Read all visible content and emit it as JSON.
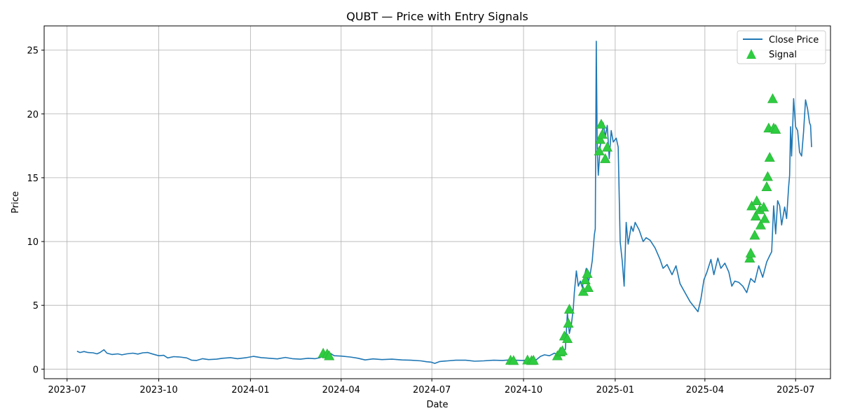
{
  "chart_data": {
    "type": "line",
    "title": "QUBT — Price with Entry Signals",
    "xlabel": "Date",
    "ylabel": "Price",
    "xlim": [
      "2023-06-08",
      "2025-08-05"
    ],
    "ylim": [
      -0.75,
      26.9
    ],
    "x_ticks": [
      {
        "date": "2023-07-01",
        "label": "2023-07"
      },
      {
        "date": "2023-10-01",
        "label": "2023-10"
      },
      {
        "date": "2024-01-01",
        "label": "2024-01"
      },
      {
        "date": "2024-04-01",
        "label": "2024-04"
      },
      {
        "date": "2024-07-01",
        "label": "2024-07"
      },
      {
        "date": "2024-10-01",
        "label": "2024-10"
      },
      {
        "date": "2025-01-01",
        "label": "2025-01"
      },
      {
        "date": "2025-04-01",
        "label": "2025-04"
      },
      {
        "date": "2025-07-01",
        "label": "2025-07"
      }
    ],
    "y_ticks": [
      0,
      5,
      10,
      15,
      20,
      25
    ],
    "grid": true,
    "legend_position": "top-right",
    "series": [
      {
        "name": "Close Price",
        "kind": "line",
        "color": "#1f77b4",
        "points": [
          [
            "2023-07-11",
            1.4
          ],
          [
            "2023-07-14",
            1.3
          ],
          [
            "2023-07-18",
            1.38
          ],
          [
            "2023-07-22",
            1.3
          ],
          [
            "2023-07-27",
            1.28
          ],
          [
            "2023-07-31",
            1.2
          ],
          [
            "2023-08-03",
            1.3
          ],
          [
            "2023-08-07",
            1.52
          ],
          [
            "2023-08-10",
            1.25
          ],
          [
            "2023-08-15",
            1.15
          ],
          [
            "2023-08-21",
            1.2
          ],
          [
            "2023-08-25",
            1.12
          ],
          [
            "2023-08-30",
            1.2
          ],
          [
            "2023-09-05",
            1.25
          ],
          [
            "2023-09-10",
            1.18
          ],
          [
            "2023-09-15",
            1.28
          ],
          [
            "2023-09-20",
            1.3
          ],
          [
            "2023-09-25",
            1.18
          ],
          [
            "2023-10-01",
            1.05
          ],
          [
            "2023-10-06",
            1.08
          ],
          [
            "2023-10-10",
            0.88
          ],
          [
            "2023-10-16",
            0.98
          ],
          [
            "2023-10-22",
            0.95
          ],
          [
            "2023-10-29",
            0.88
          ],
          [
            "2023-11-03",
            0.7
          ],
          [
            "2023-11-08",
            0.68
          ],
          [
            "2023-11-14",
            0.82
          ],
          [
            "2023-11-20",
            0.75
          ],
          [
            "2023-11-28",
            0.78
          ],
          [
            "2023-12-04",
            0.85
          ],
          [
            "2023-12-12",
            0.9
          ],
          [
            "2023-12-19",
            0.82
          ],
          [
            "2023-12-28",
            0.9
          ],
          [
            "2024-01-04",
            1.0
          ],
          [
            "2024-01-12",
            0.9
          ],
          [
            "2024-01-20",
            0.85
          ],
          [
            "2024-01-28",
            0.8
          ],
          [
            "2024-02-05",
            0.92
          ],
          [
            "2024-02-12",
            0.82
          ],
          [
            "2024-02-20",
            0.78
          ],
          [
            "2024-02-28",
            0.85
          ],
          [
            "2024-03-06",
            0.82
          ],
          [
            "2024-03-11",
            0.9
          ],
          [
            "2024-03-15",
            1.15
          ],
          [
            "2024-03-18",
            1.3
          ],
          [
            "2024-03-21",
            1.25
          ],
          [
            "2024-03-25",
            1.05
          ],
          [
            "2024-04-01",
            1.02
          ],
          [
            "2024-04-10",
            0.95
          ],
          [
            "2024-04-18",
            0.85
          ],
          [
            "2024-04-25",
            0.72
          ],
          [
            "2024-05-03",
            0.8
          ],
          [
            "2024-05-12",
            0.75
          ],
          [
            "2024-05-22",
            0.78
          ],
          [
            "2024-06-01",
            0.72
          ],
          [
            "2024-06-10",
            0.7
          ],
          [
            "2024-06-20",
            0.65
          ],
          [
            "2024-06-26",
            0.58
          ],
          [
            "2024-06-30",
            0.55
          ],
          [
            "2024-07-04",
            0.45
          ],
          [
            "2024-07-09",
            0.6
          ],
          [
            "2024-07-17",
            0.65
          ],
          [
            "2024-07-25",
            0.7
          ],
          [
            "2024-08-04",
            0.7
          ],
          [
            "2024-08-13",
            0.62
          ],
          [
            "2024-08-22",
            0.65
          ],
          [
            "2024-09-01",
            0.7
          ],
          [
            "2024-09-10",
            0.68
          ],
          [
            "2024-09-17",
            0.72
          ],
          [
            "2024-09-23",
            0.7
          ],
          [
            "2024-09-30",
            0.68
          ],
          [
            "2024-10-08",
            0.72
          ],
          [
            "2024-10-14",
            0.75
          ],
          [
            "2024-10-18",
            1.0
          ],
          [
            "2024-10-22",
            1.12
          ],
          [
            "2024-10-27",
            1.05
          ],
          [
            "2024-11-01",
            1.25
          ],
          [
            "2024-11-06",
            1.05
          ],
          [
            "2024-11-09",
            1.4
          ],
          [
            "2024-11-12",
            1.55
          ],
          [
            "2024-11-14",
            4.4
          ],
          [
            "2024-11-16",
            2.8
          ],
          [
            "2024-11-18",
            3.5
          ],
          [
            "2024-11-20",
            4.8
          ],
          [
            "2024-11-21",
            6.0
          ],
          [
            "2024-11-23",
            7.7
          ],
          [
            "2024-11-25",
            6.5
          ],
          [
            "2024-11-27",
            6.9
          ],
          [
            "2024-11-29",
            6.4
          ],
          [
            "2024-12-01",
            7.3
          ],
          [
            "2024-12-03",
            7.9
          ],
          [
            "2024-12-05",
            6.8
          ],
          [
            "2024-12-07",
            7.5
          ],
          [
            "2024-12-09",
            8.5
          ],
          [
            "2024-12-11",
            10.5
          ],
          [
            "2024-12-12",
            11.0
          ],
          [
            "2024-12-13",
            25.7
          ],
          [
            "2024-12-14",
            17.3
          ],
          [
            "2024-12-15",
            15.2
          ],
          [
            "2024-12-17",
            17.5
          ],
          [
            "2024-12-19",
            18.3
          ],
          [
            "2024-12-20",
            19.3
          ],
          [
            "2024-12-22",
            18.2
          ],
          [
            "2024-12-24",
            19.1
          ],
          [
            "2024-12-26",
            16.5
          ],
          [
            "2024-12-28",
            18.7
          ],
          [
            "2024-12-30",
            17.8
          ],
          [
            "2025-01-02",
            18.1
          ],
          [
            "2025-01-04",
            17.4
          ],
          [
            "2025-01-06",
            10.0
          ],
          [
            "2025-01-08",
            8.5
          ],
          [
            "2025-01-10",
            6.5
          ],
          [
            "2025-01-12",
            11.5
          ],
          [
            "2025-01-14",
            9.8
          ],
          [
            "2025-01-17",
            11.2
          ],
          [
            "2025-01-19",
            10.8
          ],
          [
            "2025-01-21",
            11.5
          ],
          [
            "2025-01-25",
            10.9
          ],
          [
            "2025-01-29",
            10.0
          ],
          [
            "2025-02-01",
            10.3
          ],
          [
            "2025-02-05",
            10.1
          ],
          [
            "2025-02-10",
            9.5
          ],
          [
            "2025-02-15",
            8.6
          ],
          [
            "2025-02-18",
            7.9
          ],
          [
            "2025-02-22",
            8.2
          ],
          [
            "2025-02-27",
            7.4
          ],
          [
            "2025-03-03",
            8.1
          ],
          [
            "2025-03-07",
            6.7
          ],
          [
            "2025-03-12",
            6.0
          ],
          [
            "2025-03-17",
            5.3
          ],
          [
            "2025-03-21",
            4.9
          ],
          [
            "2025-03-25",
            4.5
          ],
          [
            "2025-03-28",
            5.5
          ],
          [
            "2025-03-31",
            7.0
          ],
          [
            "2025-04-03",
            7.6
          ],
          [
            "2025-04-07",
            8.6
          ],
          [
            "2025-04-10",
            7.4
          ],
          [
            "2025-04-14",
            8.7
          ],
          [
            "2025-04-17",
            7.9
          ],
          [
            "2025-04-21",
            8.3
          ],
          [
            "2025-04-25",
            7.6
          ],
          [
            "2025-04-28",
            6.5
          ],
          [
            "2025-05-01",
            6.9
          ],
          [
            "2025-05-05",
            6.8
          ],
          [
            "2025-05-09",
            6.5
          ],
          [
            "2025-05-13",
            6.0
          ],
          [
            "2025-05-17",
            7.1
          ],
          [
            "2025-05-21",
            6.8
          ],
          [
            "2025-05-25",
            8.1
          ],
          [
            "2025-05-29",
            7.2
          ],
          [
            "2025-06-02",
            8.4
          ],
          [
            "2025-06-05",
            8.9
          ],
          [
            "2025-06-07",
            9.2
          ],
          [
            "2025-06-09",
            12.8
          ],
          [
            "2025-06-11",
            10.6
          ],
          [
            "2025-06-13",
            13.2
          ],
          [
            "2025-06-15",
            12.8
          ],
          [
            "2025-06-17",
            11.3
          ],
          [
            "2025-06-20",
            12.7
          ],
          [
            "2025-06-22",
            11.8
          ],
          [
            "2025-06-24",
            14.3
          ],
          [
            "2025-06-25",
            15.2
          ],
          [
            "2025-06-26",
            19.0
          ],
          [
            "2025-06-27",
            16.7
          ],
          [
            "2025-06-28",
            18.9
          ],
          [
            "2025-06-29",
            21.2
          ],
          [
            "2025-07-01",
            19.0
          ],
          [
            "2025-07-03",
            18.7
          ],
          [
            "2025-07-05",
            17.0
          ],
          [
            "2025-07-07",
            16.7
          ],
          [
            "2025-07-09",
            18.6
          ],
          [
            "2025-07-11",
            21.1
          ],
          [
            "2025-07-13",
            20.4
          ],
          [
            "2025-07-15",
            19.3
          ],
          [
            "2025-07-16",
            19.1
          ],
          [
            "2025-07-17",
            17.4
          ]
        ]
      },
      {
        "name": "Signal",
        "kind": "marker",
        "color": "#2ecc40",
        "points": [
          [
            "2024-03-14",
            1.25
          ],
          [
            "2024-03-18",
            1.2
          ],
          [
            "2024-03-20",
            1.05
          ],
          [
            "2024-09-18",
            0.7
          ],
          [
            "2024-09-21",
            0.68
          ],
          [
            "2024-10-05",
            0.72
          ],
          [
            "2024-10-09",
            0.68
          ],
          [
            "2024-10-11",
            0.7
          ],
          [
            "2024-11-04",
            1.05
          ],
          [
            "2024-11-07",
            1.35
          ],
          [
            "2024-11-09",
            1.45
          ],
          [
            "2024-11-11",
            2.6
          ],
          [
            "2024-11-14",
            2.4
          ],
          [
            "2024-11-15",
            3.6
          ],
          [
            "2024-11-16",
            4.7
          ],
          [
            "2024-11-30",
            6.1
          ],
          [
            "2024-12-02",
            7.0
          ],
          [
            "2024-12-04",
            7.5
          ],
          [
            "2024-12-05",
            6.4
          ],
          [
            "2024-12-16",
            17.1
          ],
          [
            "2024-12-17",
            18.0
          ],
          [
            "2024-12-18",
            19.2
          ],
          [
            "2024-12-19",
            18.4
          ],
          [
            "2024-12-22",
            16.5
          ],
          [
            "2024-12-24",
            17.4
          ],
          [
            "2025-05-16",
            8.7
          ],
          [
            "2025-05-17",
            9.1
          ],
          [
            "2025-05-18",
            12.8
          ],
          [
            "2025-05-21",
            10.5
          ],
          [
            "2025-05-22",
            12.0
          ],
          [
            "2025-05-23",
            13.2
          ],
          [
            "2025-05-26",
            12.5
          ],
          [
            "2025-05-27",
            11.3
          ],
          [
            "2025-05-30",
            12.7
          ],
          [
            "2025-05-31",
            11.8
          ],
          [
            "2025-06-02",
            14.3
          ],
          [
            "2025-06-03",
            15.1
          ],
          [
            "2025-06-04",
            18.9
          ],
          [
            "2025-06-05",
            16.6
          ],
          [
            "2025-06-08",
            21.2
          ],
          [
            "2025-06-09",
            18.9
          ],
          [
            "2025-06-11",
            18.8
          ]
        ]
      }
    ]
  }
}
